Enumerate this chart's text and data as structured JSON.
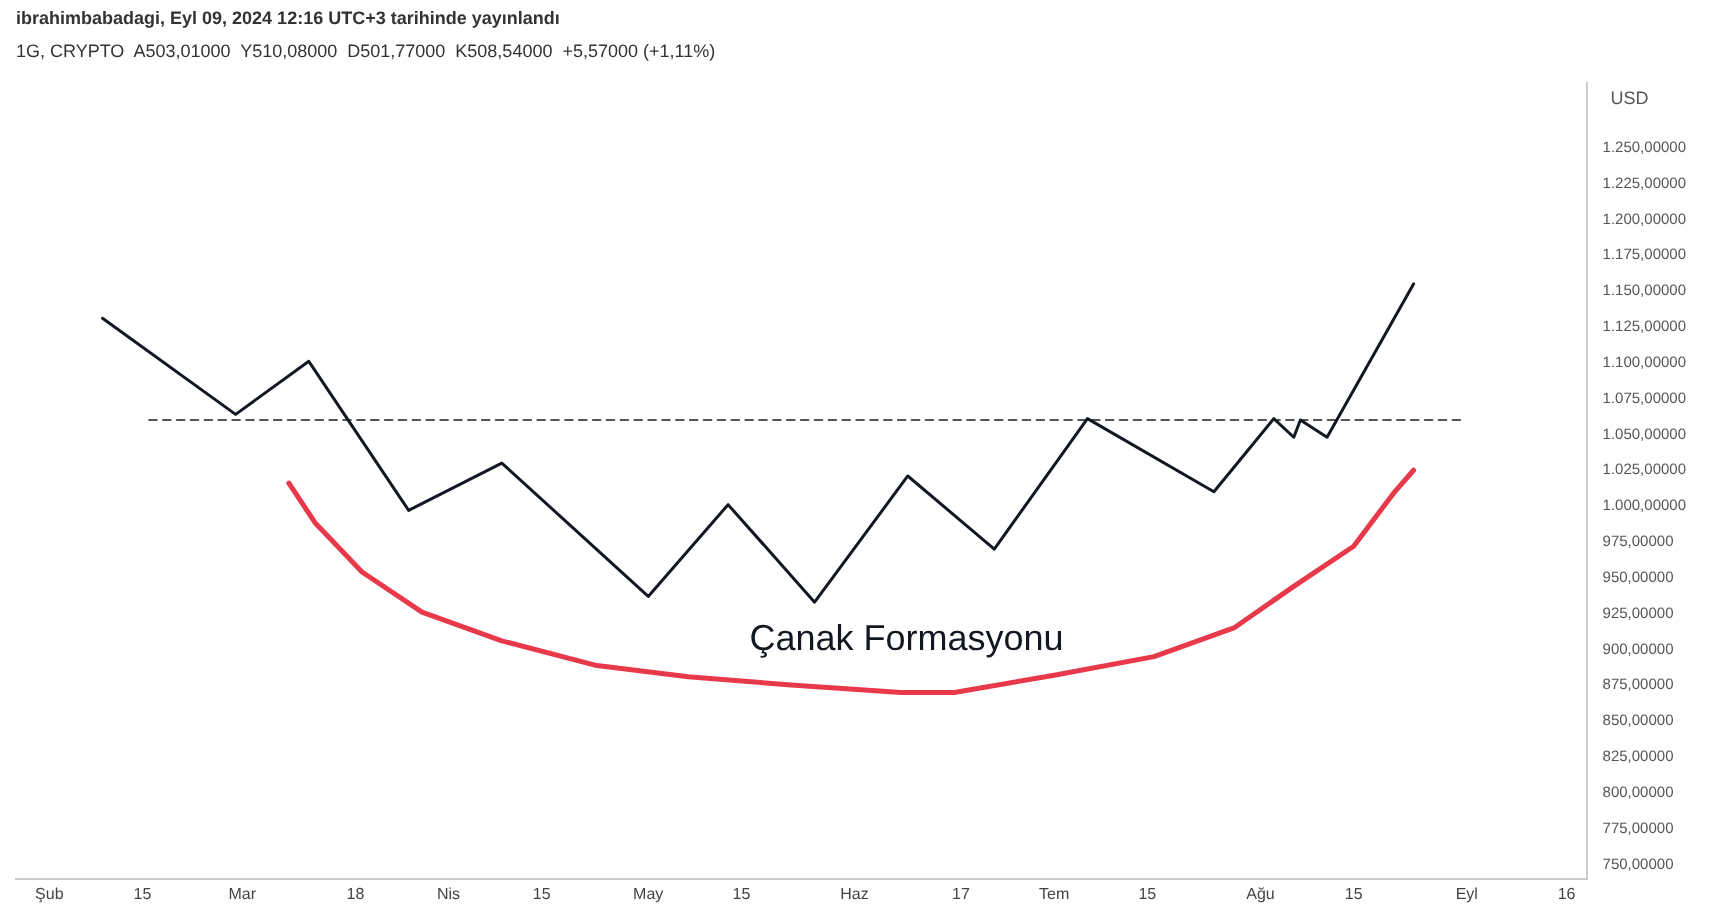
{
  "chart_data": {
    "type": "line",
    "title": "ibrahimbabadagi, Eyl 09, 2024 12:16 UTC+3 tarihinde yayınlandı",
    "subtitle": "1G, CRYPTO  A503,01000  Y510,08000  D501,77000  K508,54000  +5,57000 (+1,11%)",
    "ylabel": "USD",
    "xlim": [
      "2024-01-27",
      "2024-09-19"
    ],
    "xticks": [
      {
        "value": "2024-02-01",
        "label": "Şub"
      },
      {
        "value": "2024-02-15",
        "label": "15"
      },
      {
        "value": "2024-03-01",
        "label": "Mar"
      },
      {
        "value": "2024-03-18",
        "label": "18"
      },
      {
        "value": "2024-04-01",
        "label": "Nis"
      },
      {
        "value": "2024-04-15",
        "label": "15"
      },
      {
        "value": "2024-05-01",
        "label": "May"
      },
      {
        "value": "2024-05-15",
        "label": "15"
      },
      {
        "value": "2024-06-01",
        "label": "Haz"
      },
      {
        "value": "2024-06-17",
        "label": "17"
      },
      {
        "value": "2024-07-01",
        "label": "Tem"
      },
      {
        "value": "2024-07-15",
        "label": "15"
      },
      {
        "value": "2024-08-01",
        "label": "Ağu"
      },
      {
        "value": "2024-08-15",
        "label": "15"
      },
      {
        "value": "2024-09-01",
        "label": "Eyl"
      },
      {
        "value": "2024-09-16",
        "label": "16"
      }
    ],
    "ylim": [
      740,
      1295
    ],
    "yticks": [
      {
        "value": 750,
        "label": "750,00000"
      },
      {
        "value": 775,
        "label": "775,00000"
      },
      {
        "value": 800,
        "label": "800,00000"
      },
      {
        "value": 825,
        "label": "825,00000"
      },
      {
        "value": 850,
        "label": "850,00000"
      },
      {
        "value": 875,
        "label": "875,00000"
      },
      {
        "value": 900,
        "label": "900,00000"
      },
      {
        "value": 925,
        "label": "925,00000"
      },
      {
        "value": 950,
        "label": "950,00000"
      },
      {
        "value": 975,
        "label": "975,00000"
      },
      {
        "value": 1000,
        "label": "1.000,00000"
      },
      {
        "value": 1025,
        "label": "1.025,00000"
      },
      {
        "value": 1050,
        "label": "1.050,00000"
      },
      {
        "value": 1075,
        "label": "1.075,00000"
      },
      {
        "value": 1100,
        "label": "1.100,00000"
      },
      {
        "value": 1125,
        "label": "1.125,00000"
      },
      {
        "value": 1150,
        "label": "1.150,00000"
      },
      {
        "value": 1175,
        "label": "1.175,00000"
      },
      {
        "value": 1200,
        "label": "1.200,00000"
      },
      {
        "value": 1225,
        "label": "1.225,00000"
      },
      {
        "value": 1250,
        "label": "1.250,00000"
      }
    ],
    "grid": false,
    "legend": false,
    "marker": "none",
    "series": [
      {
        "color": "#131722",
        "line_style": "solid",
        "x": [
          "2024-02-09",
          "2024-02-29",
          "2024-03-11",
          "2024-03-26",
          "2024-04-09",
          "2024-05-01",
          "2024-05-13",
          "2024-05-26",
          "2024-06-09",
          "2024-06-22",
          "2024-07-06",
          "2024-07-25",
          "2024-08-03",
          "2024-08-06",
          "2024-08-07",
          "2024-08-11",
          "2024-08-24"
        ],
        "values": [
          1131,
          1064,
          1101,
          997,
          1030,
          937,
          1001,
          933,
          1021,
          970,
          1061,
          1010,
          1061,
          1048,
          1060,
          1048,
          1155
        ]
      },
      {
        "color": "#555555",
        "line_style": "dashed",
        "x": [
          "2024-02-16",
          "2024-08-31"
        ],
        "values": [
          1060,
          1060
        ]
      },
      {
        "color": "#e8394a",
        "line_style": "solid",
        "x": [
          "2024-03-08",
          "2024-03-12",
          "2024-03-19",
          "2024-03-28",
          "2024-04-09",
          "2024-04-23",
          "2024-05-07",
          "2024-05-23",
          "2024-06-08",
          "2024-06-16",
          "2024-07-01",
          "2024-07-16",
          "2024-07-28",
          "2024-08-06",
          "2024-08-15",
          "2024-08-21",
          "2024-08-24"
        ],
        "values": [
          1016,
          988,
          954,
          926,
          906,
          889,
          881,
          875,
          870,
          870,
          882,
          895,
          915,
          944,
          972,
          1009,
          1025
        ]
      }
    ],
    "annotations": [
      "Çanak Formasyonu"
    ]
  }
}
